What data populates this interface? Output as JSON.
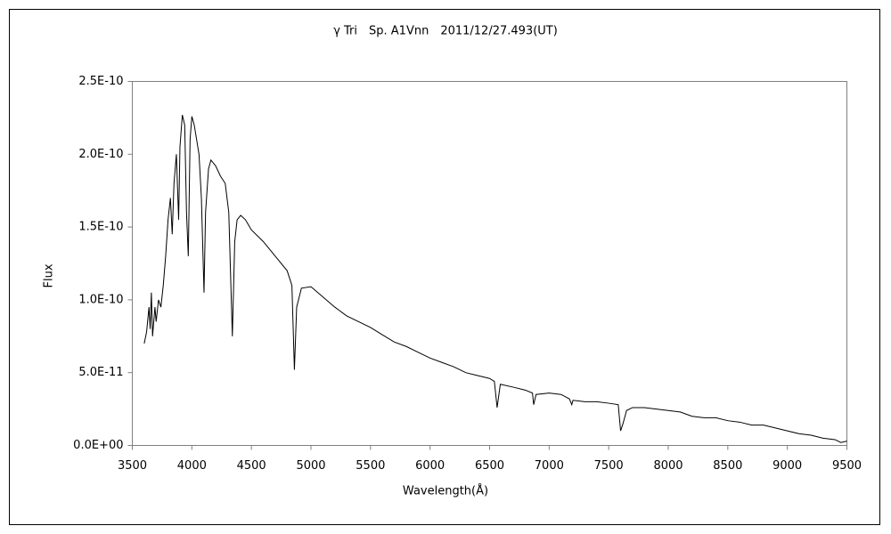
{
  "chart_data": {
    "type": "line",
    "title": "γ Tri　Sp. A1Vnn　2011/12/27.493(UT)",
    "x_label": "Wavelength(Å)",
    "y_label": "Flux",
    "color": "#000000",
    "xlim": [
      3500,
      9500
    ],
    "xticks": [
      3500,
      4000,
      4500,
      5000,
      5500,
      6000,
      6500,
      7000,
      7500,
      8000,
      8500,
      9000,
      9500
    ],
    "ylim": [
      0,
      2.5e-10
    ],
    "yticks": [
      {
        "value": 0,
        "label": "0.0E+00"
      },
      {
        "value": 5e-11,
        "label": "5.0E-11"
      },
      {
        "value": 1e-10,
        "label": "1.0E-10"
      },
      {
        "value": 1.5e-10,
        "label": "1.5E-10"
      },
      {
        "value": 2e-10,
        "label": "2.0E-10"
      },
      {
        "value": 2.5e-10,
        "label": "2.5E-10"
      }
    ],
    "x": [
      3600,
      3620,
      3640,
      3650,
      3660,
      3670,
      3690,
      3700,
      3720,
      3740,
      3760,
      3780,
      3800,
      3820,
      3835,
      3850,
      3870,
      3889,
      3900,
      3920,
      3940,
      3955,
      3970,
      3985,
      4000,
      4020,
      4040,
      4060,
      4080,
      4102,
      4115,
      4140,
      4160,
      4200,
      4240,
      4280,
      4310,
      4340,
      4360,
      4380,
      4410,
      4450,
      4500,
      4600,
      4700,
      4800,
      4840,
      4861,
      4880,
      4920,
      5000,
      5100,
      5200,
      5300,
      5400,
      5500,
      5600,
      5700,
      5800,
      5900,
      6000,
      6100,
      6200,
      6300,
      6400,
      6500,
      6540,
      6563,
      6590,
      6700,
      6800,
      6860,
      6870,
      6890,
      7000,
      7100,
      7170,
      7190,
      7200,
      7300,
      7400,
      7500,
      7580,
      7600,
      7620,
      7650,
      7700,
      7800,
      7900,
      8000,
      8100,
      8200,
      8300,
      8400,
      8500,
      8600,
      8700,
      8800,
      8900,
      9000,
      9100,
      9200,
      9300,
      9400,
      9450,
      9500
    ],
    "values": [
      7e-11,
      7.8e-11,
      9.5e-11,
      8e-11,
      1.05e-10,
      7.5e-11,
      9.5e-11,
      8.5e-11,
      1e-10,
      9.5e-11,
      1.1e-10,
      1.3e-10,
      1.55e-10,
      1.7e-10,
      1.45e-10,
      1.8e-10,
      2e-10,
      1.55e-10,
      2.05e-10,
      2.27e-10,
      2.2e-10,
      1.6e-10,
      1.3e-10,
      2.1e-10,
      2.26e-10,
      2.2e-10,
      2.1e-10,
      2e-10,
      1.7e-10,
      1.05e-10,
      1.6e-10,
      1.9e-10,
      1.96e-10,
      1.92e-10,
      1.85e-10,
      1.8e-10,
      1.6e-10,
      7.5e-11,
      1.4e-10,
      1.55e-10,
      1.58e-10,
      1.55e-10,
      1.48e-10,
      1.4e-10,
      1.3e-10,
      1.2e-10,
      1.1e-10,
      5.2e-11,
      9.5e-11,
      1.08e-10,
      1.09e-10,
      1.02e-10,
      9.5e-11,
      8.9e-11,
      8.5e-11,
      8.1e-11,
      7.6e-11,
      7.1e-11,
      6.8e-11,
      6.4e-11,
      6e-11,
      5.7e-11,
      5.4e-11,
      5e-11,
      4.8e-11,
      4.6e-11,
      4.4e-11,
      2.6e-11,
      4.2e-11,
      4e-11,
      3.8e-11,
      3.6e-11,
      2.8e-11,
      3.5e-11,
      3.6e-11,
      3.5e-11,
      3.2e-11,
      2.8e-11,
      3.1e-11,
      3e-11,
      3e-11,
      2.9e-11,
      2.8e-11,
      1e-11,
      1.5e-11,
      2.4e-11,
      2.6e-11,
      2.6e-11,
      2.5e-11,
      2.4e-11,
      2.3e-11,
      2e-11,
      1.9e-11,
      1.9e-11,
      1.7e-11,
      1.6e-11,
      1.4e-11,
      1.4e-11,
      1.2e-11,
      1e-11,
      8e-12,
      7e-12,
      5e-12,
      4e-12,
      2e-12,
      3e-12
    ]
  }
}
